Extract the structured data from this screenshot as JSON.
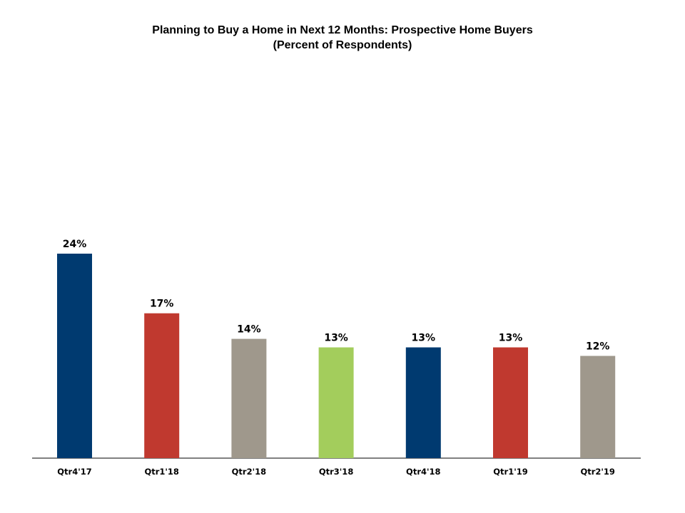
{
  "chart_data": {
    "type": "bar",
    "title": "Planning to Buy a Home in Next 12 Months: Prospective Home Buyers",
    "subtitle": "(Percent of Respondents)",
    "categories": [
      "Qtr4'17",
      "Qtr1'18",
      "Qtr2'18",
      "Qtr3'18",
      "Qtr4'18",
      "Qtr1'19",
      "Qtr2'19"
    ],
    "values": [
      24,
      17,
      14,
      13,
      13,
      13,
      12
    ],
    "data_labels": [
      "24%",
      "17%",
      "14%",
      "13%",
      "13%",
      "13%",
      "12%"
    ],
    "colors": [
      "#003A70",
      "#C0392F",
      "#9F988C",
      "#A3CD5C",
      "#003A70",
      "#C0392F",
      "#9F988C"
    ],
    "xlabel": "",
    "ylabel": "",
    "ylim": [
      0,
      50
    ],
    "grid": false,
    "legend": "none"
  }
}
